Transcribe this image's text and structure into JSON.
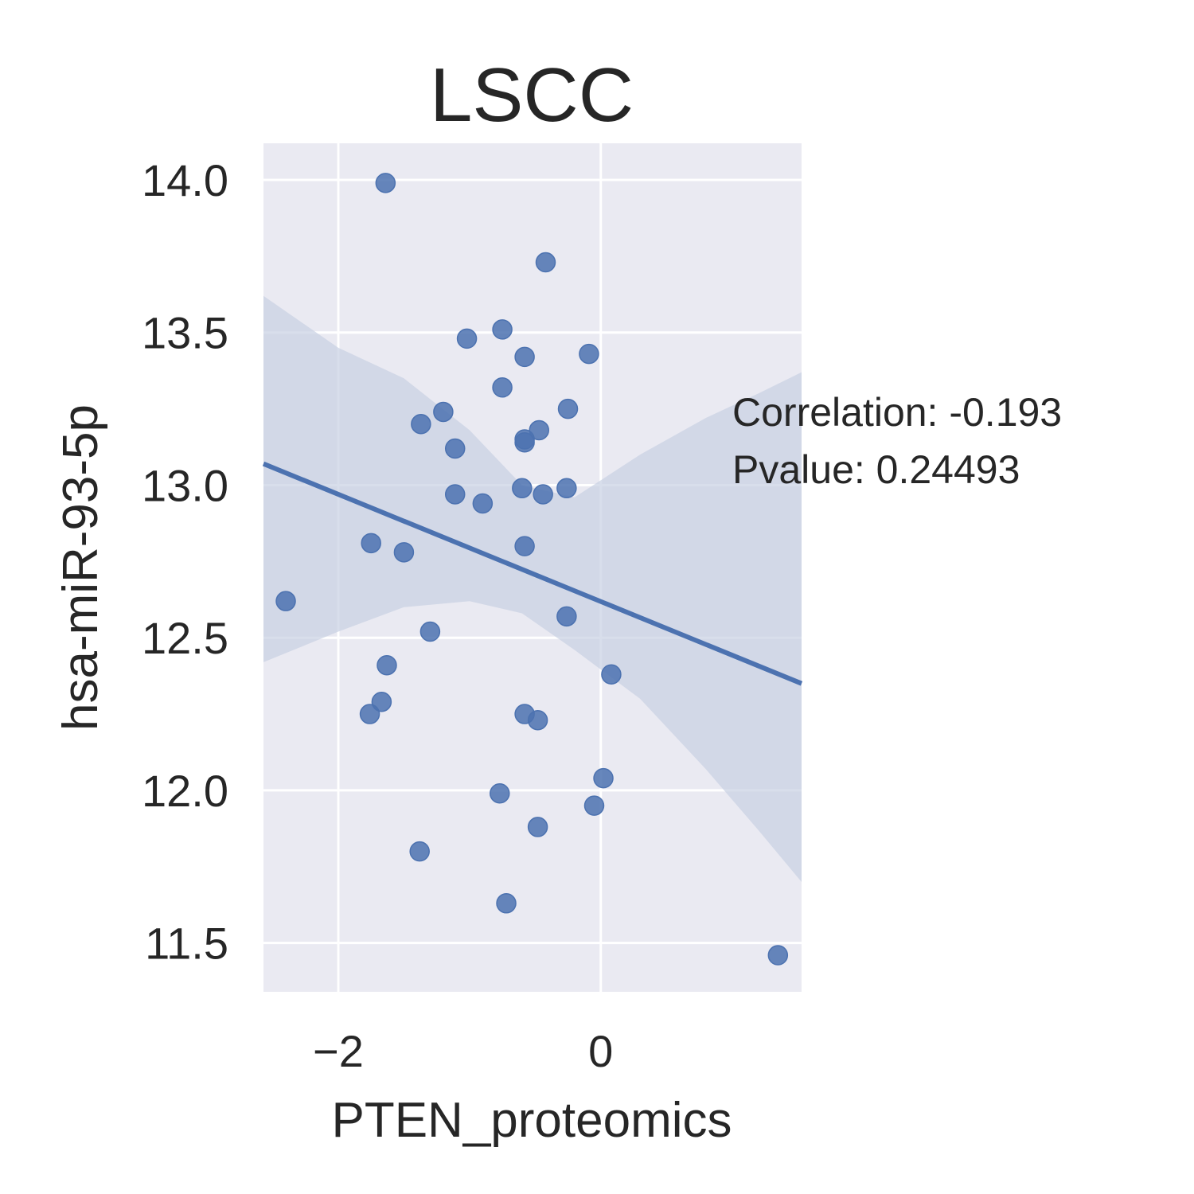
{
  "chart_data": {
    "type": "scatter",
    "title": "LSCC",
    "xlabel": "PTEN_proteomics",
    "ylabel": "hsa-miR-93-5p",
    "xlim": [
      -2.57,
      1.53
    ],
    "ylim": [
      11.34,
      14.12
    ],
    "xticks": [
      -2,
      0
    ],
    "xtick_labels": [
      "−2",
      "0"
    ],
    "yticks": [
      11.5,
      12.0,
      12.5,
      13.0,
      13.5,
      14.0
    ],
    "ytick_labels": [
      "11.5",
      "12.0",
      "12.5",
      "13.0",
      "13.5",
      "14.0"
    ],
    "grid": true,
    "background": "#EAEAF2",
    "point_color": "#4C72B0",
    "band_color": "#C8D0E3",
    "points": [
      {
        "x": -1.64,
        "y": 13.99
      },
      {
        "x": -0.42,
        "y": 13.73
      },
      {
        "x": -1.02,
        "y": 13.48
      },
      {
        "x": -0.75,
        "y": 13.51
      },
      {
        "x": -0.58,
        "y": 13.42
      },
      {
        "x": -0.09,
        "y": 13.43
      },
      {
        "x": -0.75,
        "y": 13.32
      },
      {
        "x": -1.2,
        "y": 13.24
      },
      {
        "x": -0.25,
        "y": 13.25
      },
      {
        "x": -1.37,
        "y": 13.2
      },
      {
        "x": -0.47,
        "y": 13.18
      },
      {
        "x": -0.58,
        "y": 13.15
      },
      {
        "x": -0.58,
        "y": 13.14
      },
      {
        "x": -1.11,
        "y": 13.12
      },
      {
        "x": -0.6,
        "y": 12.99
      },
      {
        "x": -0.44,
        "y": 12.97
      },
      {
        "x": -0.26,
        "y": 12.99
      },
      {
        "x": -1.11,
        "y": 12.97
      },
      {
        "x": -0.9,
        "y": 12.94
      },
      {
        "x": -1.75,
        "y": 12.81
      },
      {
        "x": -1.5,
        "y": 12.78
      },
      {
        "x": -0.58,
        "y": 12.8
      },
      {
        "x": -2.4,
        "y": 12.62
      },
      {
        "x": -0.26,
        "y": 12.57
      },
      {
        "x": -1.3,
        "y": 12.52
      },
      {
        "x": -1.63,
        "y": 12.41
      },
      {
        "x": 0.08,
        "y": 12.38
      },
      {
        "x": -1.67,
        "y": 12.29
      },
      {
        "x": -1.76,
        "y": 12.25
      },
      {
        "x": -0.58,
        "y": 12.25
      },
      {
        "x": -0.48,
        "y": 12.23
      },
      {
        "x": 0.02,
        "y": 12.04
      },
      {
        "x": -0.77,
        "y": 11.99
      },
      {
        "x": -0.05,
        "y": 11.95
      },
      {
        "x": -0.48,
        "y": 11.88
      },
      {
        "x": -1.38,
        "y": 11.8
      },
      {
        "x": -0.72,
        "y": 11.63
      },
      {
        "x": 1.35,
        "y": 11.46
      }
    ],
    "regression": {
      "x0": -2.57,
      "y0": 13.07,
      "x1": 1.53,
      "y1": 12.35
    },
    "ci_band": {
      "x": [
        -2.57,
        -2.0,
        -1.5,
        -1.0,
        -0.6,
        -0.2,
        0.3,
        0.8,
        1.2,
        1.53
      ],
      "upper": [
        13.62,
        13.45,
        13.35,
        13.18,
        13.0,
        12.96,
        13.1,
        13.22,
        13.3,
        13.37
      ],
      "lower": [
        12.42,
        12.52,
        12.6,
        12.62,
        12.58,
        12.46,
        12.3,
        12.07,
        11.87,
        11.7
      ]
    },
    "annotation": {
      "line1": "Correlation: -0.193",
      "line2": "Pvalue: 0.24493"
    }
  }
}
